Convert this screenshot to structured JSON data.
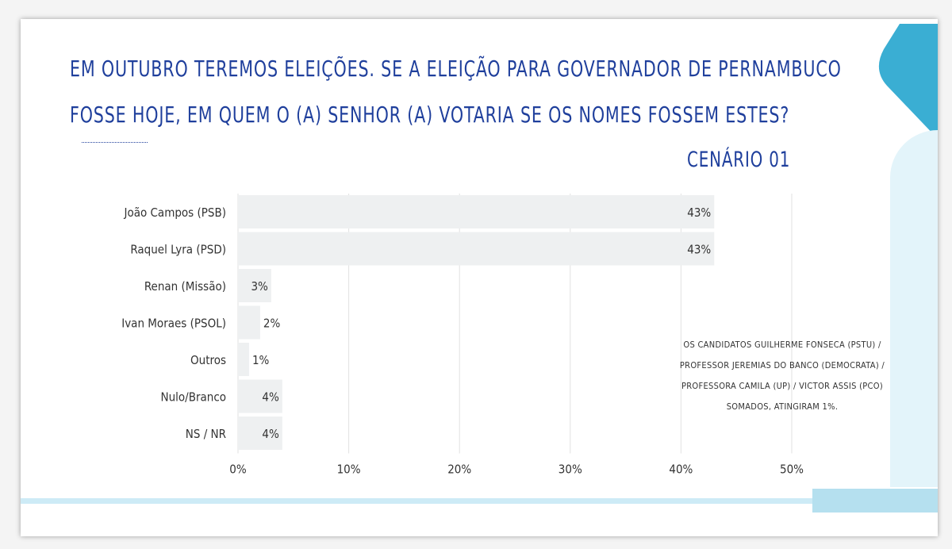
{
  "title_lines": [
    "EM OUTUBRO TEREMOS ELEIÇÕES. SE A ELEIÇÃO PARA GOVERNADOR DE PERNAMBUCO",
    "FOSSE HOJE, EM QUEM O (A) SENHOR (A) VOTARIA SE OS NOMES FOSSEM ESTES?"
  ],
  "subtitle": "CENÁRIO 01",
  "note_lines": [
    "OS CANDIDATOS  GUILHERME FONSECA (PSTU) /",
    "PROFESSOR JEREMIAS DO BANCO (DEMOCRATA) /",
    "PROFESSORA CAMILA (UP) / VICTOR ASSIS (PCO)",
    "SOMADOS, ATINGIRAM 1%."
  ],
  "colors": {
    "title": "#1f3f9c",
    "bar": "#eef0f1",
    "grid": "#e2e2e2",
    "accent_dark": "#3aaed3",
    "accent_light": "#e3f4fa"
  },
  "chart_data": {
    "type": "bar",
    "orientation": "horizontal",
    "categories": [
      "João Campos (PSB)",
      "Raquel Lyra (PSD)",
      "Renan (Missão)",
      "Ivan Moraes (PSOL)",
      "Outros",
      "Nulo/Branco",
      "NS / NR"
    ],
    "values": [
      43,
      43,
      3,
      2,
      1,
      4,
      4
    ],
    "value_labels": [
      "43%",
      "43%",
      "3%",
      "2%",
      "1%",
      "4%",
      "4%"
    ],
    "xlim": [
      0,
      50
    ],
    "x_ticks": [
      "0%",
      "10%",
      "20%",
      "30%",
      "40%",
      "50%"
    ],
    "grid": true
  }
}
